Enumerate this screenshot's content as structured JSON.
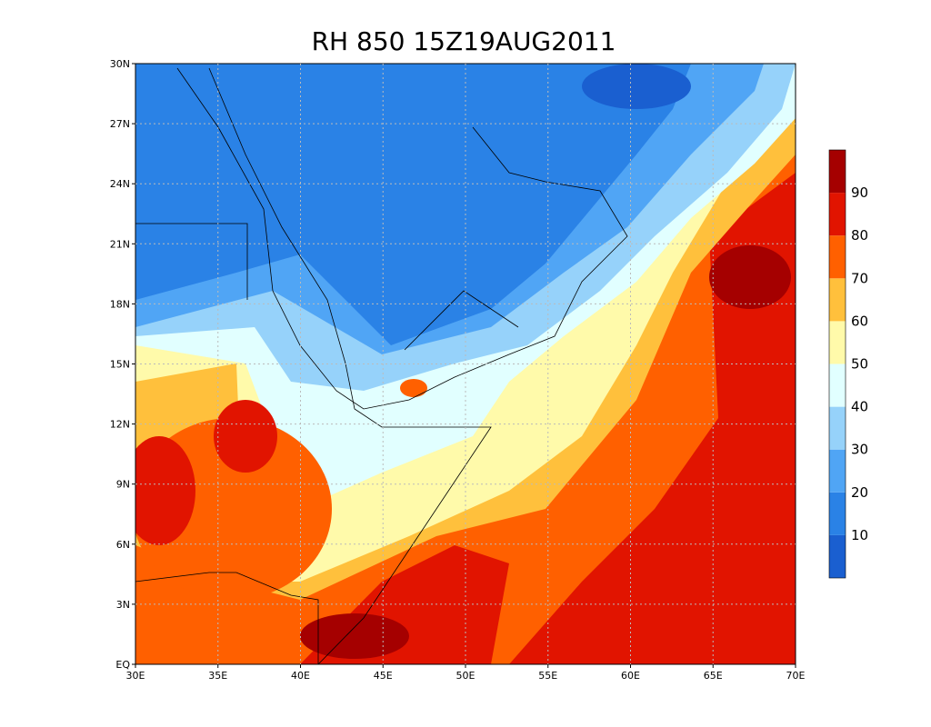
{
  "title": "RH 850 15Z19AUG2011",
  "map": {
    "xlim": [
      30,
      70
    ],
    "ylim": [
      0,
      30
    ],
    "xticks": [
      {
        "value": 30,
        "label": "30E"
      },
      {
        "value": 35,
        "label": "35E"
      },
      {
        "value": 40,
        "label": "40E"
      },
      {
        "value": 45,
        "label": "45E"
      },
      {
        "value": 50,
        "label": "50E"
      },
      {
        "value": 55,
        "label": "55E"
      },
      {
        "value": 60,
        "label": "60E"
      },
      {
        "value": 65,
        "label": "65E"
      },
      {
        "value": 70,
        "label": "70E"
      }
    ],
    "yticks": [
      {
        "value": 0,
        "label": "EQ"
      },
      {
        "value": 3,
        "label": "3N"
      },
      {
        "value": 6,
        "label": "6N"
      },
      {
        "value": 9,
        "label": "9N"
      },
      {
        "value": 12,
        "label": "12N"
      },
      {
        "value": 15,
        "label": "15N"
      },
      {
        "value": 18,
        "label": "18N"
      },
      {
        "value": 21,
        "label": "21N"
      },
      {
        "value": 24,
        "label": "24N"
      },
      {
        "value": 27,
        "label": "27N"
      },
      {
        "value": 30,
        "label": "30N"
      }
    ]
  },
  "colorbar": {
    "levels": [
      10,
      20,
      30,
      40,
      50,
      60,
      70,
      80,
      90
    ],
    "colors": [
      "#1a5fd0",
      "#2a82e6",
      "#50a5f5",
      "#96d2fa",
      "#e1ffff",
      "#fffaaa",
      "#ffc03c",
      "#ff6000",
      "#e11400",
      "#a50000"
    ]
  }
}
